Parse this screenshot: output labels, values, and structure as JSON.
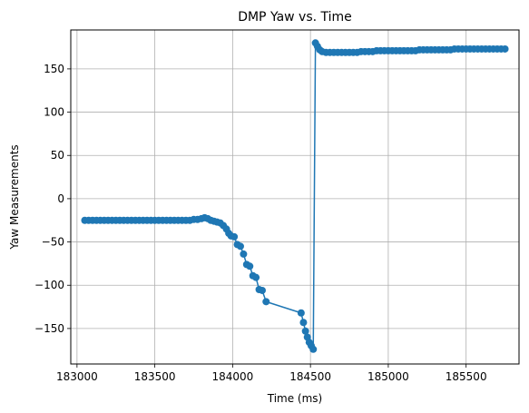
{
  "chart_data": {
    "type": "line",
    "title": "DMP Yaw vs. Time",
    "xlabel": "Time (ms)",
    "ylabel": "Yaw Measurements",
    "xlim": [
      182960,
      185840
    ],
    "ylim": [
      -191,
      195
    ],
    "xticks": [
      183000,
      183500,
      184000,
      184500,
      185000,
      185500
    ],
    "yticks": [
      -150,
      -100,
      -50,
      0,
      50,
      100,
      150
    ],
    "grid": true,
    "legend": "none",
    "colors": {
      "series": "#1f77b4",
      "grid": "#b0b0b0",
      "axis": "#000000"
    },
    "series": [
      {
        "name": "",
        "x": [
          183050,
          183075,
          183100,
          183125,
          183150,
          183175,
          183200,
          183225,
          183250,
          183275,
          183300,
          183325,
          183350,
          183375,
          183400,
          183425,
          183450,
          183475,
          183500,
          183525,
          183550,
          183575,
          183600,
          183625,
          183650,
          183675,
          183700,
          183725,
          183750,
          183775,
          183800,
          183820,
          183840,
          183860,
          183880,
          183900,
          183920,
          183940,
          183960,
          183975,
          183990,
          184010,
          184030,
          184050,
          184070,
          184090,
          184110,
          184130,
          184150,
          184170,
          184190,
          184215,
          184440,
          184455,
          184468,
          184480,
          184492,
          184505,
          184518,
          184532,
          184545,
          184560,
          184575,
          184600,
          184625,
          184650,
          184675,
          184700,
          184725,
          184750,
          184775,
          184800,
          184825,
          184850,
          184875,
          184900,
          184925,
          184950,
          184975,
          185000,
          185025,
          185050,
          185075,
          185100,
          185125,
          185150,
          185175,
          185200,
          185225,
          185250,
          185275,
          185300,
          185325,
          185350,
          185375,
          185400,
          185425,
          185450,
          185475,
          185500,
          185525,
          185550,
          185575,
          185600,
          185625,
          185650,
          185675,
          185700,
          185725,
          185750
        ],
        "y": [
          -25,
          -25,
          -25,
          -25,
          -25,
          -25,
          -25,
          -25,
          -25,
          -25,
          -25,
          -25,
          -25,
          -25,
          -25,
          -25,
          -25,
          -25,
          -25,
          -25,
          -25,
          -25,
          -25,
          -25,
          -25,
          -25,
          -25,
          -25,
          -24,
          -24,
          -23,
          -22,
          -23,
          -25,
          -26,
          -27,
          -28,
          -31,
          -35,
          -40,
          -43,
          -44,
          -53,
          -55,
          -64,
          -76,
          -78,
          -89,
          -91,
          -105,
          -106,
          -119,
          -132,
          -143,
          -153,
          -160,
          -166,
          -170,
          -174,
          180,
          176,
          172,
          170,
          169,
          169,
          169,
          169,
          169,
          169,
          169,
          169,
          169,
          170,
          170,
          170,
          170,
          171,
          171,
          171,
          171,
          171,
          171,
          171,
          171,
          171,
          171,
          171,
          172,
          172,
          172,
          172,
          172,
          172,
          172,
          172,
          172,
          173,
          173,
          173,
          173,
          173,
          173,
          173,
          173,
          173,
          173,
          173,
          173,
          173,
          173
        ]
      }
    ]
  }
}
